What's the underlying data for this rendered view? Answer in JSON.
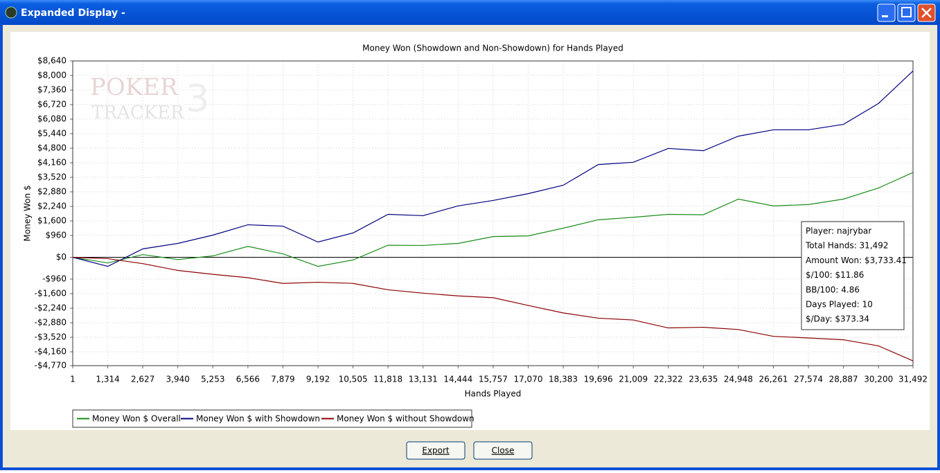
{
  "window": {
    "title": "Expanded Display -",
    "buttons": [
      "Export",
      "Close"
    ]
  },
  "watermark": {
    "line1": "POKER",
    "line2": "TRACKER",
    "mark": "3"
  },
  "chart_data": {
    "type": "line",
    "title": "Money Won (Showdown and Non-Showdown) for Hands Played",
    "x_label": "Hands Played",
    "y_label": "Money Won $",
    "x": [
      1,
      1314,
      2627,
      3940,
      5253,
      6566,
      7879,
      9192,
      10505,
      11818,
      13131,
      14444,
      15757,
      17070,
      18383,
      19696,
      21009,
      22322,
      23635,
      24948,
      26261,
      27574,
      28887,
      30200,
      31492
    ],
    "series": [
      {
        "name": "Money Won $ Overall",
        "color": "#1a8c1a",
        "values": [
          0,
          -250,
          120,
          -100,
          60,
          480,
          150,
          -400,
          -120,
          530,
          520,
          610,
          910,
          940,
          1280,
          1650,
          1760,
          1890,
          1870,
          2560,
          2260,
          2320,
          2560,
          3050,
          3730
        ]
      },
      {
        "name": "Money Won $ with Showdown",
        "color": "#000080",
        "values": [
          0,
          -400,
          370,
          610,
          975,
          1430,
          1370,
          670,
          1070,
          1890,
          1830,
          2260,
          2500,
          2800,
          3170,
          4080,
          4180,
          4790,
          4690,
          5330,
          5610,
          5610,
          5850,
          6770,
          8200
        ]
      },
      {
        "name": "Money Won $ without Showdown",
        "color": "#8b0000",
        "values": [
          0,
          -60,
          -280,
          -580,
          -750,
          -900,
          -1150,
          -1100,
          -1150,
          -1430,
          -1580,
          -1700,
          -1780,
          -2120,
          -2450,
          -2680,
          -2760,
          -3110,
          -3080,
          -3180,
          -3480,
          -3550,
          -3630,
          -3900,
          -4560
        ]
      }
    ],
    "xlim": [
      1,
      31492
    ],
    "xticks": [
      1,
      {
        "value": 1314,
        "label": "1,314"
      },
      {
        "value": 2627,
        "label": "2,627"
      },
      {
        "value": 3940,
        "label": "3,940"
      },
      {
        "value": 5253,
        "label": "5,253"
      },
      {
        "value": 6566,
        "label": "6,566"
      },
      {
        "value": 7879,
        "label": "7,879"
      },
      {
        "value": 9192,
        "label": "9,192"
      },
      {
        "value": 10505,
        "label": "10,505"
      },
      {
        "value": 11818,
        "label": "11,818"
      },
      {
        "value": 13131,
        "label": "13,131"
      },
      {
        "value": 14444,
        "label": "14,444"
      },
      {
        "value": 15757,
        "label": "15,757"
      },
      {
        "value": 17070,
        "label": "17,070"
      },
      {
        "value": 18383,
        "label": "18,383"
      },
      {
        "value": 19696,
        "label": "19,696"
      },
      {
        "value": 21009,
        "label": "21,009"
      },
      {
        "value": 22322,
        "label": "22,322"
      },
      {
        "value": 23635,
        "label": "23,635"
      },
      {
        "value": 24948,
        "label": "24,948"
      },
      {
        "value": 26261,
        "label": "26,261"
      },
      {
        "value": 27574,
        "label": "27,574"
      },
      {
        "value": 28887,
        "label": "28,887"
      },
      {
        "value": 30200,
        "label": "30,200"
      },
      {
        "value": 31492,
        "label": "31,492"
      }
    ],
    "ylim": [
      -4770,
      8640
    ],
    "yticks": [
      {
        "value": 8640,
        "label": "$8,640"
      },
      {
        "value": 8000,
        "label": "$8,000"
      },
      {
        "value": 7360,
        "label": "$7,360"
      },
      {
        "value": 6720,
        "label": "$6,720"
      },
      {
        "value": 6080,
        "label": "$6,080"
      },
      {
        "value": 5440,
        "label": "$5,440"
      },
      {
        "value": 4800,
        "label": "$4,800"
      },
      {
        "value": 4160,
        "label": "$4,160"
      },
      {
        "value": 3520,
        "label": "$3,520"
      },
      {
        "value": 2880,
        "label": "$2,880"
      },
      {
        "value": 2240,
        "label": "$2,240"
      },
      {
        "value": 1600,
        "label": "$1,600"
      },
      {
        "value": 960,
        "label": "$960"
      },
      {
        "value": 0,
        "label": "$0"
      },
      {
        "value": -960,
        "label": "-$960"
      },
      {
        "value": -1600,
        "label": "-$1,600"
      },
      {
        "value": -2240,
        "label": "-$2,240"
      },
      {
        "value": -2880,
        "label": "-$2,880"
      },
      {
        "value": -3520,
        "label": "-$3,520"
      },
      {
        "value": -4160,
        "label": "-$4,160"
      },
      {
        "value": -4770,
        "label": "-$4,770"
      }
    ],
    "grid": true,
    "legend": "bottom-left",
    "annotation": [
      "Player: najrybar",
      "Total Hands: 31,492",
      "Amount Won: $3,733.41",
      "$/100: $11.86",
      "BB/100: 4.86",
      "Days Played: 10",
      "$/Day: $373.34"
    ]
  }
}
